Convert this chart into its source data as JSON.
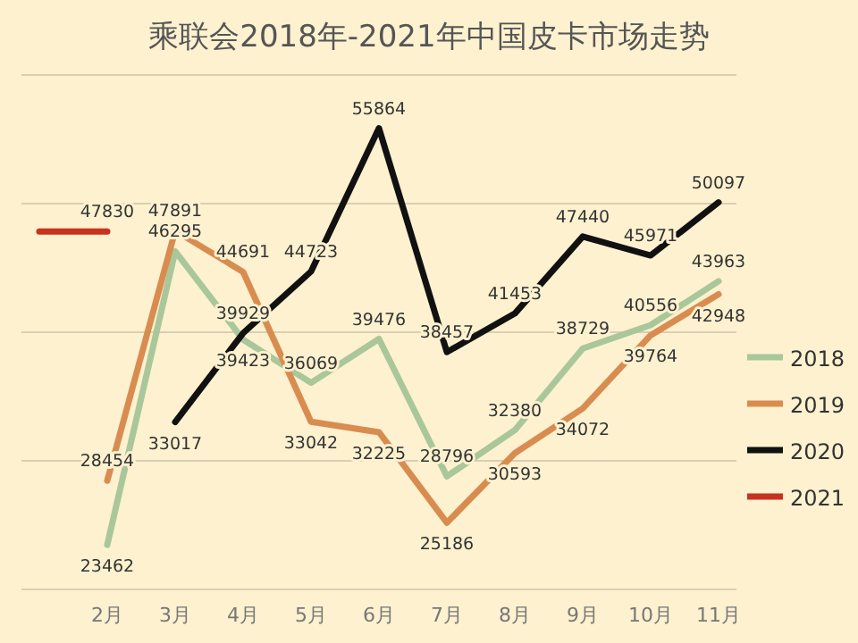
{
  "chart_data": {
    "type": "line",
    "title": "乘联会2018年-2021年中国皮卡市场走势",
    "categories": [
      null,
      "2月",
      "3月",
      "4月",
      "5月",
      "6月",
      "7月",
      "8月",
      "9月",
      "10月",
      "11月"
    ],
    "series": [
      {
        "name": "2018",
        "color": "#a9c79a",
        "values": [
          null,
          23462,
          46295,
          39423,
          36069,
          39476,
          28796,
          32380,
          38729,
          40556,
          43963
        ],
        "value_labels": [
          null,
          "23462",
          "46295",
          "39423",
          "36069",
          "39476",
          "28796",
          "32380",
          "38729",
          "40556",
          "43963"
        ]
      },
      {
        "name": "2019",
        "color": "#d98c50",
        "values": [
          null,
          28454,
          47891,
          44691,
          33042,
          32225,
          25186,
          30593,
          34072,
          39764,
          42948
        ],
        "value_labels": [
          null,
          "28454",
          "47891",
          "44691",
          "33042",
          "32225",
          "25186",
          "30593",
          "34072",
          "39764",
          "42948"
        ]
      },
      {
        "name": "2020",
        "color": "#111111",
        "values": [
          null,
          null,
          33017,
          39929,
          44723,
          55864,
          38457,
          41453,
          47440,
          45971,
          50097
        ],
        "value_labels": [
          null,
          null,
          "33017",
          "39929",
          "44723",
          "55864",
          "38457",
          "41453",
          "47440",
          "45971",
          "50097"
        ]
      },
      {
        "name": "2021",
        "color": "#c8321e",
        "values": [
          47830,
          47830,
          null,
          null,
          null,
          null,
          null,
          null,
          null,
          null,
          null
        ],
        "value_labels": [
          null,
          "47830",
          null,
          null,
          null,
          null,
          null,
          null,
          null,
          null,
          null
        ]
      }
    ],
    "ylim": [
      20000,
      60000
    ],
    "yticks": [
      {
        "value": 20000,
        "label": null
      },
      {
        "value": 30000,
        "label": null
      },
      {
        "value": 40000,
        "label": null
      },
      {
        "value": 50000,
        "label": null
      },
      {
        "value": 60000,
        "label": null
      }
    ],
    "grid": "y",
    "tick_labels": "x",
    "legend": "right",
    "marker": "none",
    "line_style": "solid"
  }
}
